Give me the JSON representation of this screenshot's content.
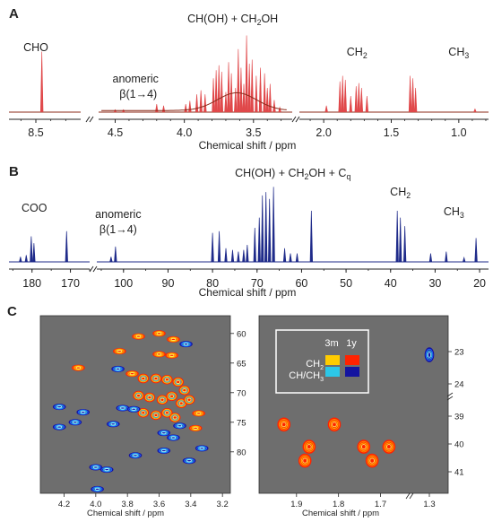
{
  "panel_labels": {
    "a": "A",
    "b": "B",
    "c": "C"
  },
  "colors": {
    "spectrum_a_fill": "#e0484a",
    "spectrum_a_line": "#8b2b1a",
    "spectrum_b_line": "#1f2b8a",
    "hsqc_bg": "#6e6e6e",
    "axis": "#222222"
  },
  "chart_data": [
    {
      "id": "A",
      "type": "line",
      "kind": "1H NMR spectrum",
      "xlabel": "Chemical shift / ppm",
      "x_reversed": true,
      "segments": [
        {
          "xlim": [
            8.68,
            8.2
          ],
          "ticks": [
            8.5
          ],
          "tick_labels": [
            "8.5"
          ]
        },
        {
          "xlim": [
            4.62,
            3.22
          ],
          "ticks": [
            4.5,
            4.0,
            3.5
          ],
          "tick_labels": [
            "4.5",
            "4.0",
            "3.5"
          ]
        },
        {
          "xlim": [
            2.18,
            0.78
          ],
          "ticks": [
            2.0,
            1.5,
            1.0
          ],
          "tick_labels": [
            "2.0",
            "1.5",
            "1.0"
          ]
        }
      ],
      "annotations": [
        {
          "text": "CHO",
          "x": 8.5
        },
        {
          "text": "anomeric",
          "x": 4.45
        },
        {
          "text": "β(1→4)",
          "x": 4.45
        },
        {
          "text": "CH(OH) + CH",
          "sub": "2",
          "tail": "OH",
          "x": 3.65
        },
        {
          "text": "CH",
          "sub": "2",
          "x": 1.82
        },
        {
          "text": "CH",
          "sub": "3",
          "x": 1.1
        }
      ],
      "peaks": [
        {
          "x": 8.46,
          "y": 0.75
        },
        {
          "x": 4.5,
          "y": 0.03
        },
        {
          "x": 4.44,
          "y": 0.03
        },
        {
          "x": 4.2,
          "y": 0.1
        },
        {
          "x": 4.15,
          "y": 0.08
        },
        {
          "x": 3.99,
          "y": 0.1
        },
        {
          "x": 3.96,
          "y": 0.14
        },
        {
          "x": 3.91,
          "y": 0.22
        },
        {
          "x": 3.88,
          "y": 0.27
        },
        {
          "x": 3.85,
          "y": 0.22
        },
        {
          "x": 3.79,
          "y": 0.42
        },
        {
          "x": 3.77,
          "y": 0.52
        },
        {
          "x": 3.75,
          "y": 0.58
        },
        {
          "x": 3.73,
          "y": 0.5
        },
        {
          "x": 3.7,
          "y": 0.25
        },
        {
          "x": 3.68,
          "y": 0.62
        },
        {
          "x": 3.66,
          "y": 0.48
        },
        {
          "x": 3.63,
          "y": 0.3
        },
        {
          "x": 3.61,
          "y": 0.78
        },
        {
          "x": 3.59,
          "y": 0.55
        },
        {
          "x": 3.57,
          "y": 0.35
        },
        {
          "x": 3.55,
          "y": 0.95
        },
        {
          "x": 3.53,
          "y": 0.6
        },
        {
          "x": 3.51,
          "y": 0.65
        },
        {
          "x": 3.48,
          "y": 0.45
        },
        {
          "x": 3.45,
          "y": 0.55
        },
        {
          "x": 3.42,
          "y": 0.48
        },
        {
          "x": 3.4,
          "y": 0.3
        },
        {
          "x": 3.38,
          "y": 0.35
        },
        {
          "x": 3.35,
          "y": 0.15
        },
        {
          "x": 3.31,
          "y": 0.06
        },
        {
          "x": 1.98,
          "y": 0.08
        },
        {
          "x": 1.88,
          "y": 0.38
        },
        {
          "x": 1.86,
          "y": 0.45
        },
        {
          "x": 1.84,
          "y": 0.4
        },
        {
          "x": 1.8,
          "y": 0.2
        },
        {
          "x": 1.76,
          "y": 0.32
        },
        {
          "x": 1.74,
          "y": 0.36
        },
        {
          "x": 1.72,
          "y": 0.3
        },
        {
          "x": 1.68,
          "y": 0.2
        },
        {
          "x": 1.36,
          "y": 0.45
        },
        {
          "x": 1.34,
          "y": 0.42
        },
        {
          "x": 1.32,
          "y": 0.3
        },
        {
          "x": 0.88,
          "y": 0.04
        }
      ]
    },
    {
      "id": "B",
      "type": "line",
      "kind": "13C NMR spectrum",
      "xlabel": "Chemical shift / ppm",
      "x_reversed": true,
      "segments": [
        {
          "xlim": [
            186,
            165
          ],
          "ticks": [
            180,
            170
          ],
          "tick_labels": [
            "180",
            "170"
          ]
        },
        {
          "xlim": [
            106,
            18
          ],
          "ticks": [
            100,
            90,
            80,
            70,
            60,
            50,
            40,
            30,
            20
          ],
          "tick_labels": [
            "100",
            "90",
            "80",
            "70",
            "60",
            "50",
            "40",
            "30",
            "20"
          ]
        }
      ],
      "annotations": [
        {
          "text": "COO",
          "x": 178
        },
        {
          "text": "anomeric",
          "x": 103
        },
        {
          "text": "β(1→4)",
          "x": 103
        },
        {
          "text": "CH(OH) + CH",
          "sub": "2",
          "tail": "OH + C",
          "sub2": "q",
          "x": 68
        },
        {
          "text": "CH",
          "sub": "2",
          "x": 37
        },
        {
          "text": "CH",
          "sub": "3",
          "x": 27
        }
      ],
      "peaks": [
        {
          "x": 183,
          "y": 0.06
        },
        {
          "x": 181.5,
          "y": 0.08
        },
        {
          "x": 180.2,
          "y": 0.3
        },
        {
          "x": 179.5,
          "y": 0.22
        },
        {
          "x": 171,
          "y": 0.36
        },
        {
          "x": 102.8,
          "y": 0.06
        },
        {
          "x": 101.8,
          "y": 0.18
        },
        {
          "x": 80,
          "y": 0.34
        },
        {
          "x": 78.5,
          "y": 0.36
        },
        {
          "x": 77,
          "y": 0.16
        },
        {
          "x": 75.5,
          "y": 0.14
        },
        {
          "x": 74.2,
          "y": 0.12
        },
        {
          "x": 73,
          "y": 0.14
        },
        {
          "x": 72.2,
          "y": 0.2
        },
        {
          "x": 70.5,
          "y": 0.4
        },
        {
          "x": 69.5,
          "y": 0.52
        },
        {
          "x": 68.8,
          "y": 0.78
        },
        {
          "x": 68,
          "y": 0.82
        },
        {
          "x": 67.2,
          "y": 0.74
        },
        {
          "x": 66.3,
          "y": 0.88
        },
        {
          "x": 63.8,
          "y": 0.16
        },
        {
          "x": 62.5,
          "y": 0.1
        },
        {
          "x": 61,
          "y": 0.1
        },
        {
          "x": 57.8,
          "y": 0.6
        },
        {
          "x": 38.5,
          "y": 0.6
        },
        {
          "x": 37.8,
          "y": 0.52
        },
        {
          "x": 36.8,
          "y": 0.42
        },
        {
          "x": 31,
          "y": 0.1
        },
        {
          "x": 27.5,
          "y": 0.12
        },
        {
          "x": 23.5,
          "y": 0.05
        },
        {
          "x": 20.8,
          "y": 0.28
        }
      ]
    },
    {
      "id": "C-left",
      "type": "heatmap",
      "kind": "1H-13C HSQC contour map",
      "xlabel": "Chemical shift / ppm",
      "xlim": [
        4.35,
        3.15
      ],
      "ylim": [
        57,
        87
      ],
      "xticks": [
        4.2,
        4.0,
        3.8,
        3.6,
        3.4,
        3.2
      ],
      "xtick_labels": [
        "4.2",
        "4.0",
        "3.8",
        "3.6",
        "3.4",
        "3.2"
      ],
      "yticks": [
        60,
        65,
        70,
        75,
        80
      ],
      "ytick_labels": [
        "60",
        "65",
        "70",
        "75",
        "80"
      ],
      "contours": [
        {
          "x": 3.73,
          "y": 60.5,
          "c": "warm"
        },
        {
          "x": 3.6,
          "y": 60,
          "c": "warm"
        },
        {
          "x": 3.51,
          "y": 61,
          "c": "warm"
        },
        {
          "x": 3.43,
          "y": 61.8,
          "c": "cool"
        },
        {
          "x": 3.85,
          "y": 63,
          "c": "warm"
        },
        {
          "x": 3.6,
          "y": 63.5,
          "c": "warm"
        },
        {
          "x": 3.52,
          "y": 63.7,
          "c": "warm"
        },
        {
          "x": 4.11,
          "y": 65.8,
          "c": "warm"
        },
        {
          "x": 3.86,
          "y": 66,
          "c": "cool"
        },
        {
          "x": 3.77,
          "y": 66.8,
          "c": "warm"
        },
        {
          "x": 3.7,
          "y": 67.6,
          "c": "mix"
        },
        {
          "x": 3.62,
          "y": 67.6,
          "c": "mix"
        },
        {
          "x": 3.55,
          "y": 67.8,
          "c": "mix"
        },
        {
          "x": 3.48,
          "y": 68.2,
          "c": "mix"
        },
        {
          "x": 3.44,
          "y": 69.6,
          "c": "mix"
        },
        {
          "x": 3.73,
          "y": 70.5,
          "c": "mix"
        },
        {
          "x": 3.66,
          "y": 70.8,
          "c": "mix"
        },
        {
          "x": 3.58,
          "y": 71.2,
          "c": "mix"
        },
        {
          "x": 3.52,
          "y": 70.6,
          "c": "mix"
        },
        {
          "x": 3.46,
          "y": 71.8,
          "c": "mix"
        },
        {
          "x": 3.41,
          "y": 71.2,
          "c": "mix"
        },
        {
          "x": 3.7,
          "y": 73.4,
          "c": "mix"
        },
        {
          "x": 3.62,
          "y": 73.8,
          "c": "mix"
        },
        {
          "x": 3.55,
          "y": 73.4,
          "c": "mix"
        },
        {
          "x": 3.5,
          "y": 74.2,
          "c": "mix"
        },
        {
          "x": 3.35,
          "y": 73.5,
          "c": "warm"
        },
        {
          "x": 3.83,
          "y": 72.6,
          "c": "cool"
        },
        {
          "x": 3.76,
          "y": 72.8,
          "c": "cool"
        },
        {
          "x": 4.08,
          "y": 73.3,
          "c": "cool"
        },
        {
          "x": 4.23,
          "y": 72.4,
          "c": "cool"
        },
        {
          "x": 3.89,
          "y": 75.3,
          "c": "cool"
        },
        {
          "x": 3.57,
          "y": 76.8,
          "c": "cool"
        },
        {
          "x": 3.51,
          "y": 77.6,
          "c": "cool"
        },
        {
          "x": 3.47,
          "y": 75.6,
          "c": "cool"
        },
        {
          "x": 3.37,
          "y": 76,
          "c": "warm"
        },
        {
          "x": 4.13,
          "y": 75,
          "c": "cool"
        },
        {
          "x": 4.23,
          "y": 75.8,
          "c": "cool"
        },
        {
          "x": 3.33,
          "y": 79.4,
          "c": "cool"
        },
        {
          "x": 3.57,
          "y": 79.8,
          "c": "cool"
        },
        {
          "x": 3.75,
          "y": 80.6,
          "c": "cool"
        },
        {
          "x": 3.41,
          "y": 81.5,
          "c": "cool"
        },
        {
          "x": 4.0,
          "y": 82.6,
          "c": "cool"
        },
        {
          "x": 3.93,
          "y": 83,
          "c": "cool"
        },
        {
          "x": 3.99,
          "y": 86.3,
          "c": "cool"
        }
      ]
    },
    {
      "id": "C-right",
      "type": "heatmap",
      "kind": "1H-13C HSQC contour map",
      "xlabel": "Chemical shift / ppm",
      "xticks": [
        1.9,
        1.8,
        1.7,
        1.3
      ],
      "xtick_labels": [
        "1.9",
        "1.8",
        "1.7",
        "1.3"
      ],
      "yticks": [
        23,
        24,
        39,
        40,
        41
      ],
      "ytick_labels": [
        "23",
        "24",
        "39",
        "40",
        "41"
      ],
      "legend": {
        "placement": "top-left",
        "header": [
          "3m",
          "1y"
        ],
        "rows": [
          {
            "label": "CH",
            "sub": "2",
            "colors": [
              "#ffcc00",
              "#ff2200"
            ]
          },
          {
            "label": "CH/CH",
            "sub": "3",
            "colors": [
              "#2cc7e8",
              "#1414a0"
            ]
          }
        ]
      },
      "contours": [
        {
          "x": 1.32,
          "y": 23.1,
          "c": "cool"
        },
        {
          "x": 1.93,
          "y": 39.3,
          "c": "warm"
        },
        {
          "x": 1.81,
          "y": 39.3,
          "c": "warm"
        },
        {
          "x": 1.87,
          "y": 40.1,
          "c": "warm"
        },
        {
          "x": 1.74,
          "y": 40.1,
          "c": "warm"
        },
        {
          "x": 1.68,
          "y": 40.1,
          "c": "warm"
        },
        {
          "x": 1.88,
          "y": 40.6,
          "c": "warm"
        },
        {
          "x": 1.72,
          "y": 40.6,
          "c": "warm"
        }
      ]
    }
  ]
}
